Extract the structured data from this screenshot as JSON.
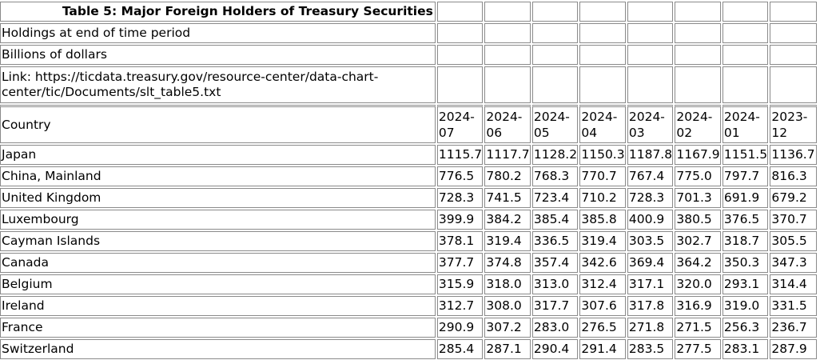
{
  "table": {
    "title": "Table 5: Major Foreign Holders of Treasury Securities",
    "meta": [
      "Holdings at end of time period",
      "Billions of dollars",
      "Link: https://ticdata.treasury.gov/resource-center/data-chart-center/tic/Documents/slt_table5.txt"
    ],
    "country_header": "Country",
    "periods": [
      "2024-07",
      "2024-06",
      "2024-05",
      "2024-04",
      "2024-03",
      "2024-02",
      "2024-01",
      "2023-12"
    ],
    "period_parts": [
      [
        "2024-",
        "07"
      ],
      [
        "2024-",
        "06"
      ],
      [
        "2024-",
        "05"
      ],
      [
        "2024-",
        "04"
      ],
      [
        "2024-",
        "03"
      ],
      [
        "2024-",
        "02"
      ],
      [
        "2024-",
        "01"
      ],
      [
        "2023-",
        "12"
      ]
    ],
    "rows": [
      {
        "country": "Japan",
        "values": [
          "1115.7",
          "1117.7",
          "1128.2",
          "1150.3",
          "1187.8",
          "1167.9",
          "1151.5",
          "1136.7"
        ]
      },
      {
        "country": "China, Mainland",
        "values": [
          "776.5",
          "780.2",
          "768.3",
          "770.7",
          "767.4",
          "775.0",
          "797.7",
          "816.3"
        ]
      },
      {
        "country": "United Kingdom",
        "values": [
          "728.3",
          "741.5",
          "723.4",
          "710.2",
          "728.3",
          "701.3",
          "691.9",
          "679.2"
        ]
      },
      {
        "country": "Luxembourg",
        "values": [
          "399.9",
          "384.2",
          "385.4",
          "385.8",
          "400.9",
          "380.5",
          "376.5",
          "370.7"
        ]
      },
      {
        "country": "Cayman Islands",
        "values": [
          "378.1",
          "319.4",
          "336.5",
          "319.4",
          "303.5",
          "302.7",
          "318.7",
          "305.5"
        ]
      },
      {
        "country": "Canada",
        "values": [
          "377.7",
          "374.8",
          "357.4",
          "342.6",
          "369.4",
          "364.2",
          "350.3",
          "347.3"
        ]
      },
      {
        "country": "Belgium",
        "values": [
          "315.9",
          "318.0",
          "313.0",
          "312.4",
          "317.1",
          "320.0",
          "293.1",
          "314.4"
        ]
      },
      {
        "country": "Ireland",
        "values": [
          "312.7",
          "308.0",
          "317.7",
          "307.6",
          "317.8",
          "316.9",
          "319.0",
          "331.5"
        ]
      },
      {
        "country": "France",
        "values": [
          "290.9",
          "307.2",
          "283.0",
          "276.5",
          "271.8",
          "271.5",
          "256.3",
          "236.7"
        ]
      },
      {
        "country": "Switzerland",
        "values": [
          "285.4",
          "287.1",
          "290.4",
          "291.4",
          "283.5",
          "277.5",
          "283.1",
          "287.9"
        ]
      }
    ]
  }
}
